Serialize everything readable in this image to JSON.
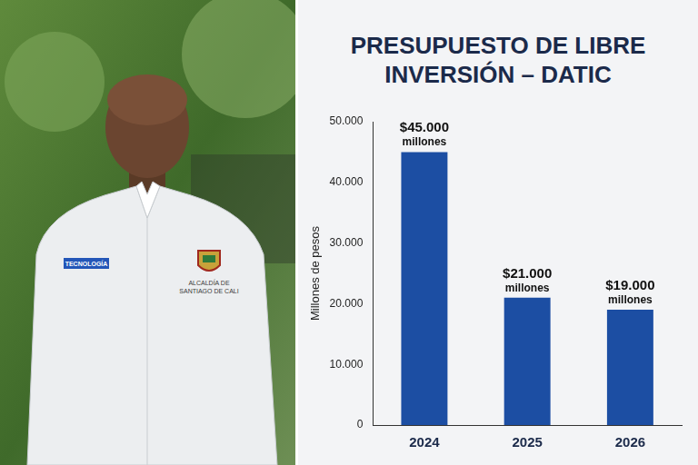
{
  "chart_data": {
    "type": "bar",
    "title": "PRESUPUESTO DE LIBRE INVERSIÓN – DATIC",
    "y_label": "Millones de pesos",
    "categories": [
      "2024",
      "2025",
      "2026"
    ],
    "values": [
      45000,
      21000,
      19000
    ],
    "value_labels": [
      "$45.000 millones",
      "$21.000 millones",
      "$19.000 millones"
    ],
    "data_labels": true,
    "color": "#1c4ea3",
    "ylim": [
      0,
      50000
    ],
    "yticks": [
      0,
      {
        "value": 10000,
        "label": "10.000"
      },
      {
        "value": 20000,
        "label": "20.000"
      },
      {
        "value": 30000,
        "label": "30.000"
      },
      {
        "value": 40000,
        "label": "40.000"
      },
      {
        "value": 50000,
        "label": "50.000"
      }
    ],
    "grid": false
  },
  "photo": {
    "badge": "TECNOLOGÍA",
    "logo_text": [
      "ALCALDÍA DE",
      "SANTIAGO DE CALI"
    ]
  }
}
